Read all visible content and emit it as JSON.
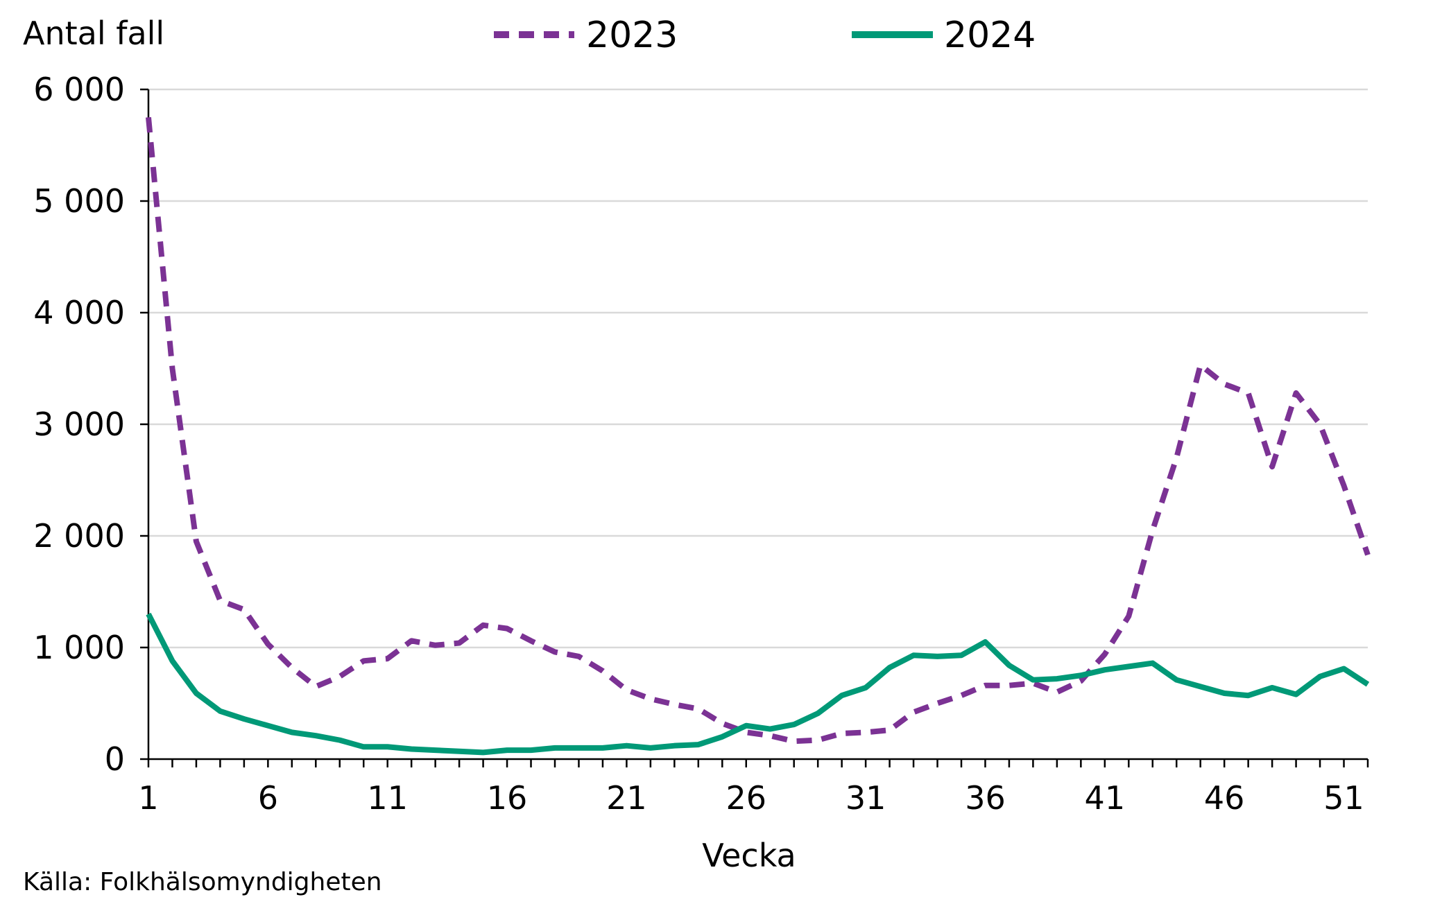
{
  "y_unit_label": "Antal fall",
  "x_axis_title": "Vecka",
  "source": "Källa: Folkhälsomyndigheten",
  "legend": [
    {
      "label": "2023",
      "color": "#7b3294",
      "style": "dashed"
    },
    {
      "label": "2024",
      "color": "#009977",
      "style": "solid"
    }
  ],
  "chart_data": {
    "type": "line",
    "title": "",
    "xlabel": "Vecka",
    "ylabel": "Antal fall",
    "x": [
      1,
      2,
      3,
      4,
      5,
      6,
      7,
      8,
      9,
      10,
      11,
      12,
      13,
      14,
      15,
      16,
      17,
      18,
      19,
      20,
      21,
      22,
      23,
      24,
      25,
      26,
      27,
      28,
      29,
      30,
      31,
      32,
      33,
      34,
      35,
      36,
      37,
      38,
      39,
      40,
      41,
      42,
      43,
      44,
      45,
      46,
      47,
      48,
      49,
      50,
      51,
      52
    ],
    "xlim": [
      1,
      52
    ],
    "ylim": [
      0,
      6000
    ],
    "y_ticks": [
      0,
      1000,
      2000,
      3000,
      4000,
      5000,
      6000
    ],
    "y_tick_labels": [
      "0",
      "1 000",
      "2 000",
      "3 000",
      "4 000",
      "5 000",
      "6 000"
    ],
    "x_ticks": [
      1,
      6,
      11,
      16,
      21,
      26,
      31,
      36,
      41,
      46,
      51
    ],
    "x_tick_labels": [
      "1",
      "6",
      "11",
      "16",
      "21",
      "26",
      "31",
      "36",
      "41",
      "46",
      "51"
    ],
    "grid": "horizontal",
    "legend_position": "top",
    "series": [
      {
        "name": "2023",
        "color": "#7b3294",
        "dash": "dashed",
        "values": [
          5750,
          3500,
          1950,
          1420,
          1340,
          1030,
          820,
          650,
          740,
          880,
          900,
          1060,
          1020,
          1040,
          1200,
          1170,
          1060,
          960,
          920,
          790,
          620,
          540,
          490,
          450,
          320,
          240,
          210,
          160,
          170,
          230,
          240,
          260,
          420,
          500,
          570,
          660,
          660,
          680,
          600,
          700,
          940,
          1280,
          2050,
          2700,
          3530,
          3360,
          3280,
          2620,
          3280,
          3000,
          2450,
          1830
        ]
      },
      {
        "name": "2024",
        "color": "#009977",
        "dash": "solid",
        "values": [
          1300,
          880,
          590,
          430,
          360,
          300,
          240,
          210,
          170,
          110,
          110,
          90,
          80,
          70,
          60,
          80,
          80,
          100,
          100,
          100,
          120,
          100,
          120,
          130,
          200,
          300,
          270,
          310,
          410,
          570,
          640,
          820,
          930,
          920,
          930,
          1050,
          840,
          710,
          720,
          750,
          800,
          830,
          860,
          710,
          650,
          590,
          570,
          640,
          580,
          740,
          810,
          670
        ]
      }
    ]
  }
}
